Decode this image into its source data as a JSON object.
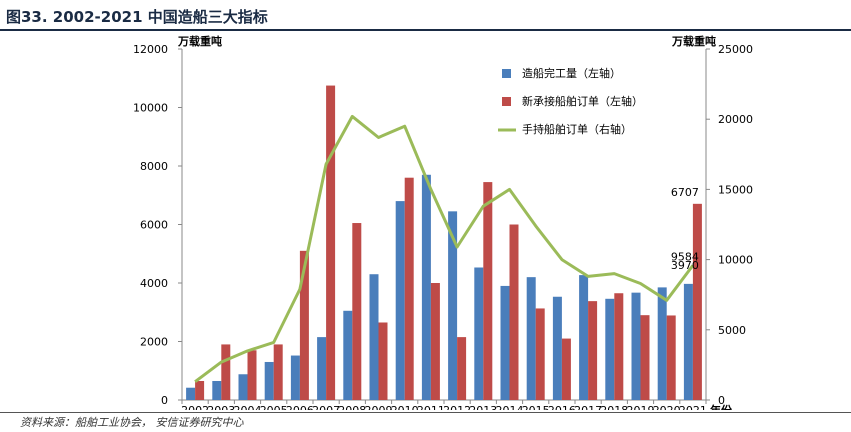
{
  "header": {
    "title": "图33. 2002-2021 中国造船三大指标"
  },
  "footer": {
    "source": "资料来源：船舶工业协会， 安信证券研究中心"
  },
  "chart_data": {
    "type": "bar",
    "categories": [
      "2002",
      "2003",
      "2004",
      "2005",
      "2006",
      "2007",
      "2008",
      "2009",
      "2010",
      "2011",
      "2012",
      "2013",
      "2014",
      "2015",
      "2016",
      "2017",
      "2018",
      "2019",
      "2020",
      "2021"
    ],
    "x_unit": "年份",
    "left_axis": {
      "unit": "万载重吨",
      "ylim": [
        0,
        12000
      ],
      "ticks": [
        0,
        2000,
        4000,
        6000,
        8000,
        10000,
        12000
      ]
    },
    "right_axis": {
      "unit": "万载重吨",
      "ylim": [
        0,
        25000
      ],
      "ticks": [
        0,
        5000,
        10000,
        15000,
        20000,
        25000
      ]
    },
    "grid": false,
    "legend_position": "top-right",
    "series": [
      {
        "name": "造船完工量（左轴）",
        "type": "bar",
        "axis": "left",
        "color": "#4a7ebb",
        "values": [
          420,
          650,
          880,
          1300,
          1520,
          2150,
          3050,
          4300,
          6800,
          7700,
          6450,
          4530,
          3900,
          4200,
          3530,
          4270,
          3460,
          3670,
          3850,
          3970
        ]
      },
      {
        "name": "新承接船舶订单（左轴）",
        "type": "bar",
        "axis": "left",
        "color": "#be4b48",
        "values": [
          650,
          1900,
          1700,
          1900,
          5100,
          10750,
          6050,
          2650,
          7600,
          4000,
          2150,
          7450,
          6000,
          3130,
          2100,
          3380,
          3650,
          2900,
          2890,
          6707
        ]
      },
      {
        "name": "手持船舶订单（右轴）",
        "type": "line",
        "axis": "right",
        "color": "#9bbb59",
        "values": [
          1300,
          2700,
          3500,
          4100,
          7900,
          16800,
          20200,
          18700,
          19500,
          15000,
          10900,
          13800,
          15000,
          12400,
          10000,
          8800,
          9000,
          8300,
          7100,
          9584
        ]
      }
    ],
    "data_labels": [
      {
        "series": 1,
        "index": 19,
        "text": "6707"
      },
      {
        "series": 2,
        "index": 19,
        "text": "9584"
      },
      {
        "series": 0,
        "index": 19,
        "text": "3970"
      }
    ]
  }
}
